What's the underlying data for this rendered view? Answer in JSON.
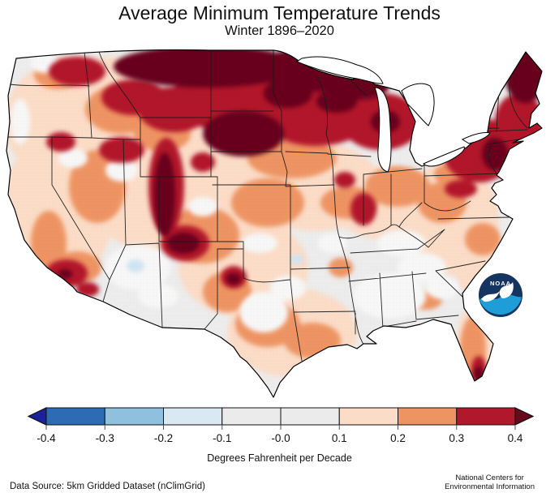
{
  "title": "Average Minimum Temperature Trends",
  "subtitle": "Winter 1896–2020",
  "caption": "Degrees Fahrenheit per Decade",
  "footer": {
    "data_source": "Data Source: 5km Gridded Dataset (nClimGrid)",
    "credit_line1": "National Centers for",
    "credit_line2": "Environmental Information"
  },
  "logo": {
    "name": "NOAA logo",
    "text": "NOAA",
    "top_color": "#15345f",
    "bottom_color": "#1f9dd9"
  },
  "colorbar": {
    "tick_labels": [
      "-0.4",
      "-0.3",
      "-0.2",
      "-0.1",
      "-0.0",
      "0.1",
      "0.2",
      "0.3",
      "0.4"
    ],
    "segment_colors": [
      "#2d6cb5",
      "#8fc0dd",
      "#d9e8f2",
      "#ebebeb",
      "#ebebeb",
      "#fbdcc7",
      "#ee9463",
      "#b2182b"
    ],
    "left_arrow_color": "#19219b",
    "right_arrow_color": "#660a1b"
  },
  "chart_data": {
    "type": "heatmap",
    "title": "Average Minimum Temperature Trends",
    "subtitle": "Winter 1896–2020",
    "units": "Degrees Fahrenheit per Decade",
    "geography": "Contiguous United States with state boundaries",
    "colorbar": {
      "bin_edges": [
        -0.4,
        -0.3,
        -0.2,
        -0.1,
        -0.0,
        0.1,
        0.2,
        0.3,
        0.4
      ],
      "open_ended_low": "< -0.4",
      "open_ended_high": "> 0.4",
      "segment_colors": [
        "#2d6cb5",
        "#8fc0dd",
        "#d9e8f2",
        "#ebebeb",
        "#ebebeb",
        "#fbdcc7",
        "#ee9463",
        "#b2182b"
      ],
      "arrow_colors": {
        "low": "#19219b",
        "high": "#660a1b"
      },
      "legend_position": "bottom"
    },
    "region_trends_F_per_decade": [
      {
        "region": "Northern tier: Montana, North Dakota, Minnesota, Wisconsin, Upper Michigan",
        "trend": "> 0.4"
      },
      {
        "region": "South Dakota and northern Nebraska core",
        "trend": "0.3 to > 0.4"
      },
      {
        "region": "Northern New England (Maine), northern New York, New Jersey pocket",
        "trend": "0.3 to > 0.4"
      },
      {
        "region": "Utah mountain corridor and Four Corners area",
        "trend": "0.3 to > 0.4"
      },
      {
        "region": "Pacific Northwest and northern Rockies",
        "trend": "0.1 to 0.3 with pockets > 0.3"
      },
      {
        "region": "California",
        "trend": "0.0 to 0.2 with dark red pockets in Southern California"
      },
      {
        "region": "Central and southern Plains (Kansas, Oklahoma, Texas)",
        "trend": "0.0 to 0.2 with local red spot near Texas panhandle"
      },
      {
        "region": "Desert Southwest (Arizona, New Mexico)",
        "trend": "-0.1 to 0.1 with small light-blue cooling spots"
      },
      {
        "region": "Southeast interior (Mississippi, Alabama, Georgia, Tennessee)",
        "trend": "-0.1 to 0.1"
      },
      {
        "region": "Mid-Atlantic and Ohio Valley",
        "trend": "0.1 to 0.2 with scattered red pockets"
      },
      {
        "region": "Florida peninsula",
        "trend": "0.2 to 0.3, exceeding 0.3 at the southern tip"
      }
    ]
  }
}
